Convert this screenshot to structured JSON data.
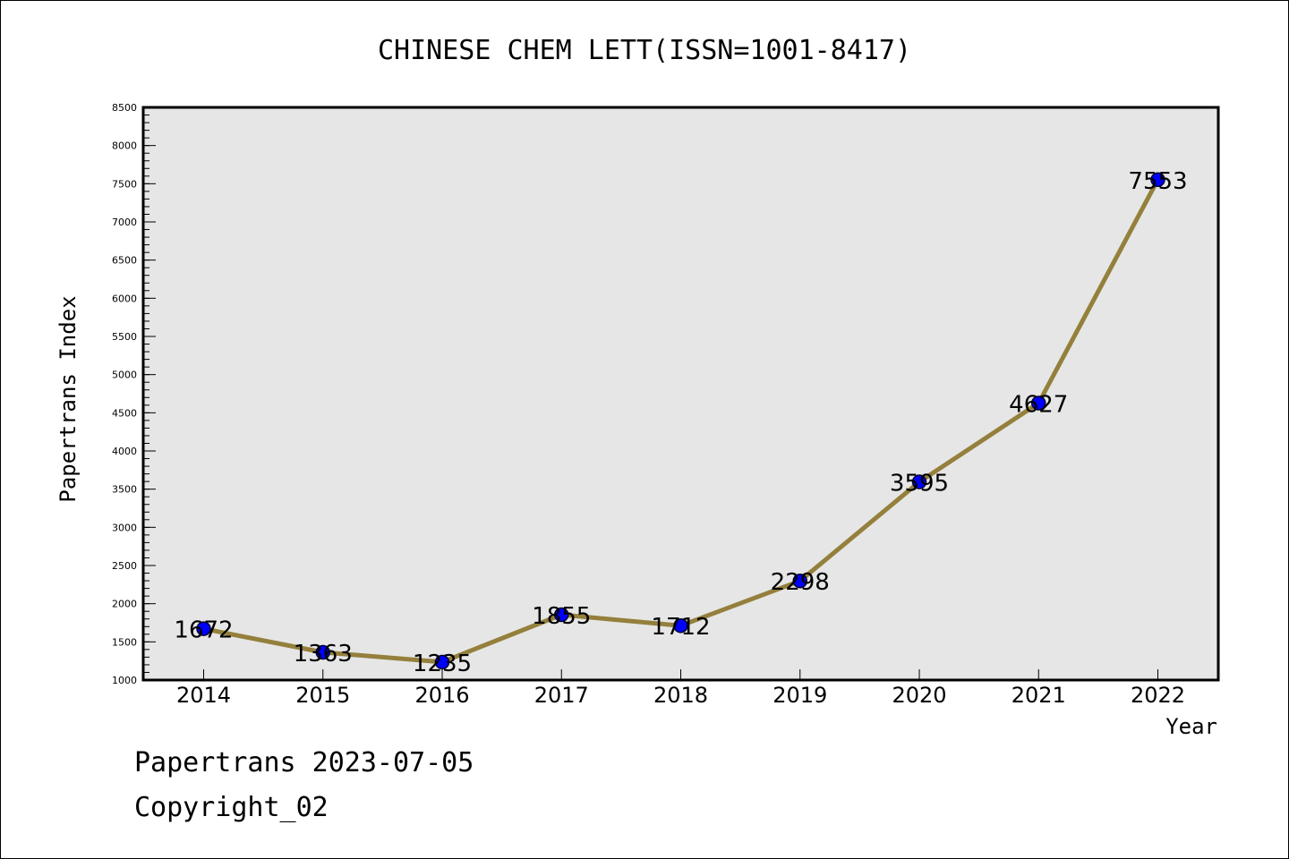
{
  "chart_data": {
    "type": "line",
    "title": "CHINESE CHEM LETT(ISSN=1001-8417)",
    "xlabel": "Year",
    "ylabel": "Papertrans Index",
    "categories": [
      "2014",
      "2015",
      "2016",
      "2017",
      "2018",
      "2019",
      "2020",
      "2021",
      "2022"
    ],
    "values": [
      1672,
      1363,
      1235,
      1855,
      1712,
      2298,
      3595,
      4627,
      7553
    ],
    "data_labels": [
      "1672",
      "1363",
      "1235",
      "1855",
      "1712",
      "2298",
      "3595",
      "4627",
      "7553"
    ],
    "ylim": [
      1000,
      8500
    ],
    "yticks": [
      "1000",
      "1500",
      "2000",
      "2500",
      "3000",
      "3500",
      "4000",
      "4500",
      "5000",
      "5500",
      "6000",
      "6500",
      "7000",
      "7500",
      "8000",
      "8500"
    ],
    "grid": false,
    "legend": "none",
    "colors": {
      "line": "#94803c",
      "marker_fill": "#0000ff",
      "marker_edge": "#000033",
      "plot_background": "#e6e6e6"
    }
  },
  "footer": {
    "line1": "Papertrans 2023-07-05",
    "line2": "Copyright_02"
  }
}
